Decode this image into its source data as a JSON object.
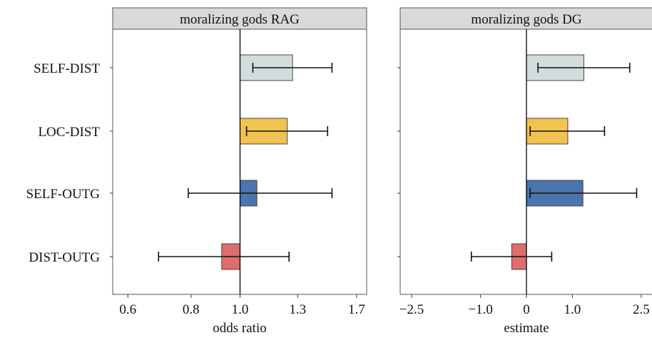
{
  "chart_data": [
    {
      "type": "bar",
      "title": "moralizing gods RAG",
      "xlabel": "odds ratio",
      "x_scale": "log",
      "reference": 1.0,
      "xlim": [
        0.56,
        1.78
      ],
      "xticks": [
        0.6,
        0.8,
        1.0,
        1.3,
        1.7
      ],
      "xtick_labels": [
        "0.6",
        "0.8",
        "1.0",
        "1.3",
        "1.7"
      ],
      "categories": [
        "SELF-DIST",
        "LOC-DIST",
        "SELF-OUTG",
        "DIST-OUTG"
      ],
      "values": [
        1.27,
        1.24,
        1.08,
        0.92
      ],
      "ci_low": [
        1.06,
        1.03,
        0.79,
        0.69
      ],
      "ci_high": [
        1.52,
        1.49,
        1.52,
        1.25
      ],
      "colors": [
        "#d2dcdc",
        "#f3c34f",
        "#4a76ad",
        "#de6d6d"
      ]
    },
    {
      "type": "bar",
      "title": "moralizing gods DG",
      "xlabel": "estimate",
      "reference": 0,
      "xlim": [
        -2.75,
        2.75
      ],
      "xticks": [
        -2.5,
        -1.0,
        0,
        1.0,
        2.5
      ],
      "xtick_labels": [
        "−2.5",
        "−1.0",
        "0",
        "1.0",
        "2.5"
      ],
      "categories": [
        "SELF-DIST",
        "LOC-DIST",
        "SELF-OUTG",
        "DIST-OUTG"
      ],
      "values": [
        1.25,
        0.9,
        1.23,
        -0.32
      ],
      "ci_low": [
        0.25,
        0.08,
        0.08,
        -1.2
      ],
      "ci_high": [
        2.25,
        1.7,
        2.4,
        0.55
      ],
      "colors": [
        "#d2dcdc",
        "#f3c34f",
        "#4a76ad",
        "#de6d6d"
      ]
    }
  ]
}
